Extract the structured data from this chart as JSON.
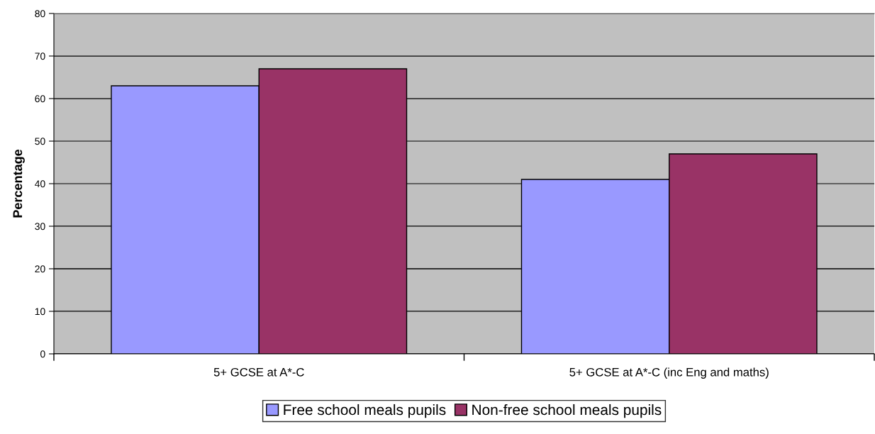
{
  "chart_data": {
    "type": "bar",
    "ylabel": "Percentage",
    "categories": [
      "5+ GCSE at A*-C",
      "5+ GCSE at A*-C (inc Eng and maths)"
    ],
    "series": [
      {
        "name": "Free school meals pupils",
        "color": "#9999ff",
        "values": [
          63,
          41
        ]
      },
      {
        "name": "Non-free school meals pupils",
        "color": "#993366",
        "values": [
          67,
          47
        ]
      }
    ],
    "ylim": [
      0,
      80
    ],
    "yticks": [
      0,
      10,
      20,
      30,
      40,
      50,
      60,
      70,
      80
    ],
    "grid": "y",
    "legend": "bottom"
  }
}
